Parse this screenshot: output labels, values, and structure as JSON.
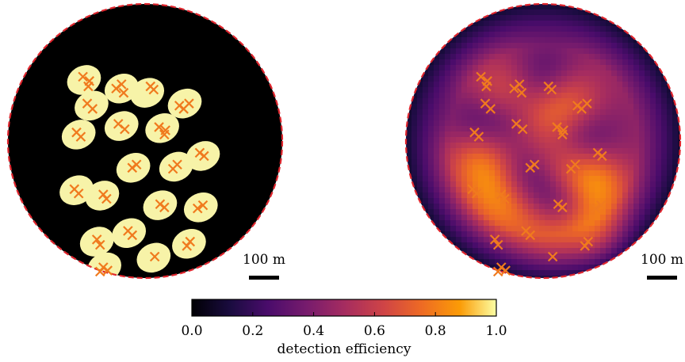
{
  "chart_data": [
    {
      "type": "heatmap",
      "panel": "left",
      "map_style": "binary",
      "palette": {
        "background": "#000000",
        "blob": "#f7f3a8",
        "boundary": "#e0262e",
        "marker": "#f07a1e"
      },
      "blobs": [
        {
          "x": -285,
          "y": 285
        },
        {
          "x": -110,
          "y": 245
        },
        {
          "x": -250,
          "y": 165
        },
        {
          "x": 10,
          "y": 225
        },
        {
          "x": 185,
          "y": 175
        },
        {
          "x": -110,
          "y": 70
        },
        {
          "x": 80,
          "y": 60
        },
        {
          "x": -310,
          "y": 30
        },
        {
          "x": 270,
          "y": -70
        },
        {
          "x": 145,
          "y": -120
        },
        {
          "x": -55,
          "y": -125
        },
        {
          "x": -320,
          "y": -230
        },
        {
          "x": -200,
          "y": -255
        },
        {
          "x": 260,
          "y": -310
        },
        {
          "x": 70,
          "y": -300
        },
        {
          "x": -225,
          "y": -470
        },
        {
          "x": -75,
          "y": -430
        },
        {
          "x": 205,
          "y": -480
        },
        {
          "x": 40,
          "y": -545
        },
        {
          "x": -190,
          "y": -590
        }
      ],
      "stations": [
        {
          "x": -290,
          "y": 300
        },
        {
          "x": -260,
          "y": 280
        },
        {
          "x": -265,
          "y": 255
        },
        {
          "x": -135,
          "y": 245
        },
        {
          "x": -110,
          "y": 265
        },
        {
          "x": -100,
          "y": 225
        },
        {
          "x": 25,
          "y": 255
        },
        {
          "x": 40,
          "y": 240
        },
        {
          "x": -270,
          "y": 175
        },
        {
          "x": -245,
          "y": 150
        },
        {
          "x": 205,
          "y": 175
        },
        {
          "x": 180,
          "y": 150
        },
        {
          "x": 160,
          "y": 165
        },
        {
          "x": -125,
          "y": 80
        },
        {
          "x": -95,
          "y": 55
        },
        {
          "x": 65,
          "y": 65
        },
        {
          "x": 95,
          "y": 50
        },
        {
          "x": 90,
          "y": 30
        },
        {
          "x": -320,
          "y": 40
        },
        {
          "x": -300,
          "y": 20
        },
        {
          "x": 275,
          "y": -70
        },
        {
          "x": 255,
          "y": -55
        },
        {
          "x": 150,
          "y": -110
        },
        {
          "x": 130,
          "y": -130
        },
        {
          "x": -60,
          "y": -125
        },
        {
          "x": -40,
          "y": -110
        },
        {
          "x": -330,
          "y": -225
        },
        {
          "x": -310,
          "y": -245
        },
        {
          "x": -195,
          "y": -250
        },
        {
          "x": -180,
          "y": -270
        },
        {
          "x": 270,
          "y": -300
        },
        {
          "x": 245,
          "y": -315
        },
        {
          "x": 70,
          "y": -295
        },
        {
          "x": 90,
          "y": -310
        },
        {
          "x": -225,
          "y": -460
        },
        {
          "x": -210,
          "y": -485
        },
        {
          "x": -80,
          "y": -420
        },
        {
          "x": -60,
          "y": -440
        },
        {
          "x": 210,
          "y": -470
        },
        {
          "x": 195,
          "y": -490
        },
        {
          "x": 45,
          "y": -540
        },
        {
          "x": -195,
          "y": -590
        },
        {
          "x": -175,
          "y": -605
        },
        {
          "x": -210,
          "y": -610
        }
      ],
      "scale_bar": {
        "label": "100 m"
      }
    },
    {
      "type": "heatmap",
      "panel": "right",
      "map_style": "continuous",
      "colormap": "inferno",
      "range": [
        0.0,
        1.0
      ],
      "background_level": 0.45,
      "palette": {
        "boundary": "#e0262e",
        "marker": "#f07a1e"
      },
      "bumps": [
        {
          "x": -200,
          "y": 220,
          "a": 0.25
        },
        {
          "x": 120,
          "y": 180,
          "a": 0.3
        },
        {
          "x": -300,
          "y": -60,
          "a": 0.3
        },
        {
          "x": 250,
          "y": -200,
          "a": 0.35
        },
        {
          "x": 30,
          "y": -430,
          "a": 0.25
        },
        {
          "x": -150,
          "y": -330,
          "a": 0.25
        },
        {
          "x": 230,
          "y": -420,
          "a": 0.3
        },
        {
          "x": -40,
          "y": 90,
          "a": 0.25
        },
        {
          "x": -250,
          "y": -220,
          "a": 0.25
        },
        {
          "x": 100,
          "y": -150,
          "a": 0.25
        },
        {
          "x": -290,
          "y": 80,
          "a": -0.25
        },
        {
          "x": 20,
          "y": 300,
          "a": -0.2
        },
        {
          "x": 80,
          "y": -280,
          "a": -0.3
        },
        {
          "x": -80,
          "y": -180,
          "a": -0.2
        },
        {
          "x": 200,
          "y": 20,
          "a": -0.2
        },
        {
          "x": -120,
          "y": 100,
          "a": -0.2
        }
      ],
      "stations": [
        {
          "x": -290,
          "y": 300
        },
        {
          "x": -260,
          "y": 280
        },
        {
          "x": -265,
          "y": 255
        },
        {
          "x": -135,
          "y": 245
        },
        {
          "x": -110,
          "y": 265
        },
        {
          "x": -100,
          "y": 225
        },
        {
          "x": 25,
          "y": 255
        },
        {
          "x": 40,
          "y": 240
        },
        {
          "x": -270,
          "y": 175
        },
        {
          "x": -245,
          "y": 150
        },
        {
          "x": 205,
          "y": 175
        },
        {
          "x": 180,
          "y": 150
        },
        {
          "x": 160,
          "y": 165
        },
        {
          "x": -125,
          "y": 80
        },
        {
          "x": -95,
          "y": 55
        },
        {
          "x": 65,
          "y": 65
        },
        {
          "x": 95,
          "y": 50
        },
        {
          "x": 90,
          "y": 30
        },
        {
          "x": -320,
          "y": 40
        },
        {
          "x": -300,
          "y": 20
        },
        {
          "x": 275,
          "y": -70
        },
        {
          "x": 255,
          "y": -55
        },
        {
          "x": 150,
          "y": -110
        },
        {
          "x": 130,
          "y": -130
        },
        {
          "x": -60,
          "y": -125
        },
        {
          "x": -40,
          "y": -110
        },
        {
          "x": -330,
          "y": -225
        },
        {
          "x": -310,
          "y": -245
        },
        {
          "x": -195,
          "y": -250
        },
        {
          "x": -180,
          "y": -270
        },
        {
          "x": 270,
          "y": -300
        },
        {
          "x": 245,
          "y": -315
        },
        {
          "x": 70,
          "y": -295
        },
        {
          "x": 90,
          "y": -310
        },
        {
          "x": -225,
          "y": -460
        },
        {
          "x": -210,
          "y": -485
        },
        {
          "x": -80,
          "y": -420
        },
        {
          "x": -60,
          "y": -440
        },
        {
          "x": 210,
          "y": -470
        },
        {
          "x": 195,
          "y": -490
        },
        {
          "x": 45,
          "y": -540
        },
        {
          "x": -195,
          "y": -590
        },
        {
          "x": -175,
          "y": -605
        },
        {
          "x": -210,
          "y": -610
        }
      ],
      "scale_bar": {
        "label": "100 m"
      }
    }
  ],
  "colorbar": {
    "label": "detection efficiency",
    "range": [
      0.0,
      1.0
    ],
    "ticks": [
      0.0,
      0.2,
      0.4,
      0.6,
      0.8,
      1.0
    ],
    "tick_labels": [
      "0.0",
      "0.2",
      "0.4",
      "0.6",
      "0.8",
      "1.0"
    ]
  }
}
